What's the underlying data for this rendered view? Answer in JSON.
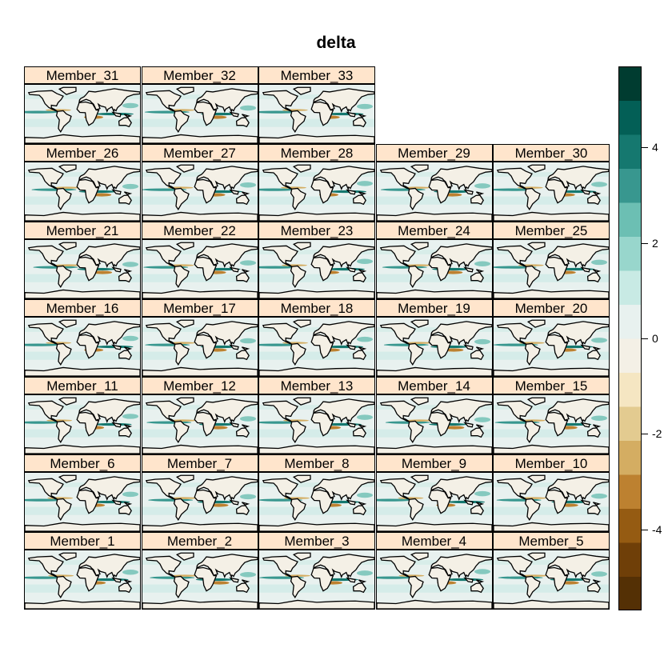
{
  "chart_data": {
    "type": "heatmap",
    "title": "delta",
    "layout": "lattice panels of world maps, 5 columns x 7 rows",
    "panels": [
      "Member_31",
      "Member_32",
      "Member_33",
      "Member_26",
      "Member_27",
      "Member_28",
      "Member_29",
      "Member_30",
      "Member_21",
      "Member_22",
      "Member_23",
      "Member_24",
      "Member_25",
      "Member_16",
      "Member_17",
      "Member_18",
      "Member_19",
      "Member_20",
      "Member_11",
      "Member_12",
      "Member_13",
      "Member_14",
      "Member_15",
      "Member_6",
      "Member_7",
      "Member_8",
      "Member_9",
      "Member_10",
      "Member_1",
      "Member_2",
      "Member_3",
      "Member_4",
      "Member_5"
    ],
    "colorkey": {
      "range": [
        -5.7,
        5.7
      ],
      "ticks": [
        4,
        2,
        0,
        -2,
        -4
      ],
      "tick_labels": [
        "4",
        "2",
        "0",
        "-2",
        "-4"
      ],
      "colors_low_to_high": [
        "#543005",
        "#6f3f08",
        "#955b12",
        "#bd8130",
        "#d4ad62",
        "#e3cb90",
        "#f5e6c2",
        "#f4f0e6",
        "#e8f1ef",
        "#c8eae4",
        "#98d6cc",
        "#6cbfb3",
        "#38978f",
        "#15786f",
        "#035f56",
        "#003c30"
      ],
      "placement": "right"
    }
  }
}
